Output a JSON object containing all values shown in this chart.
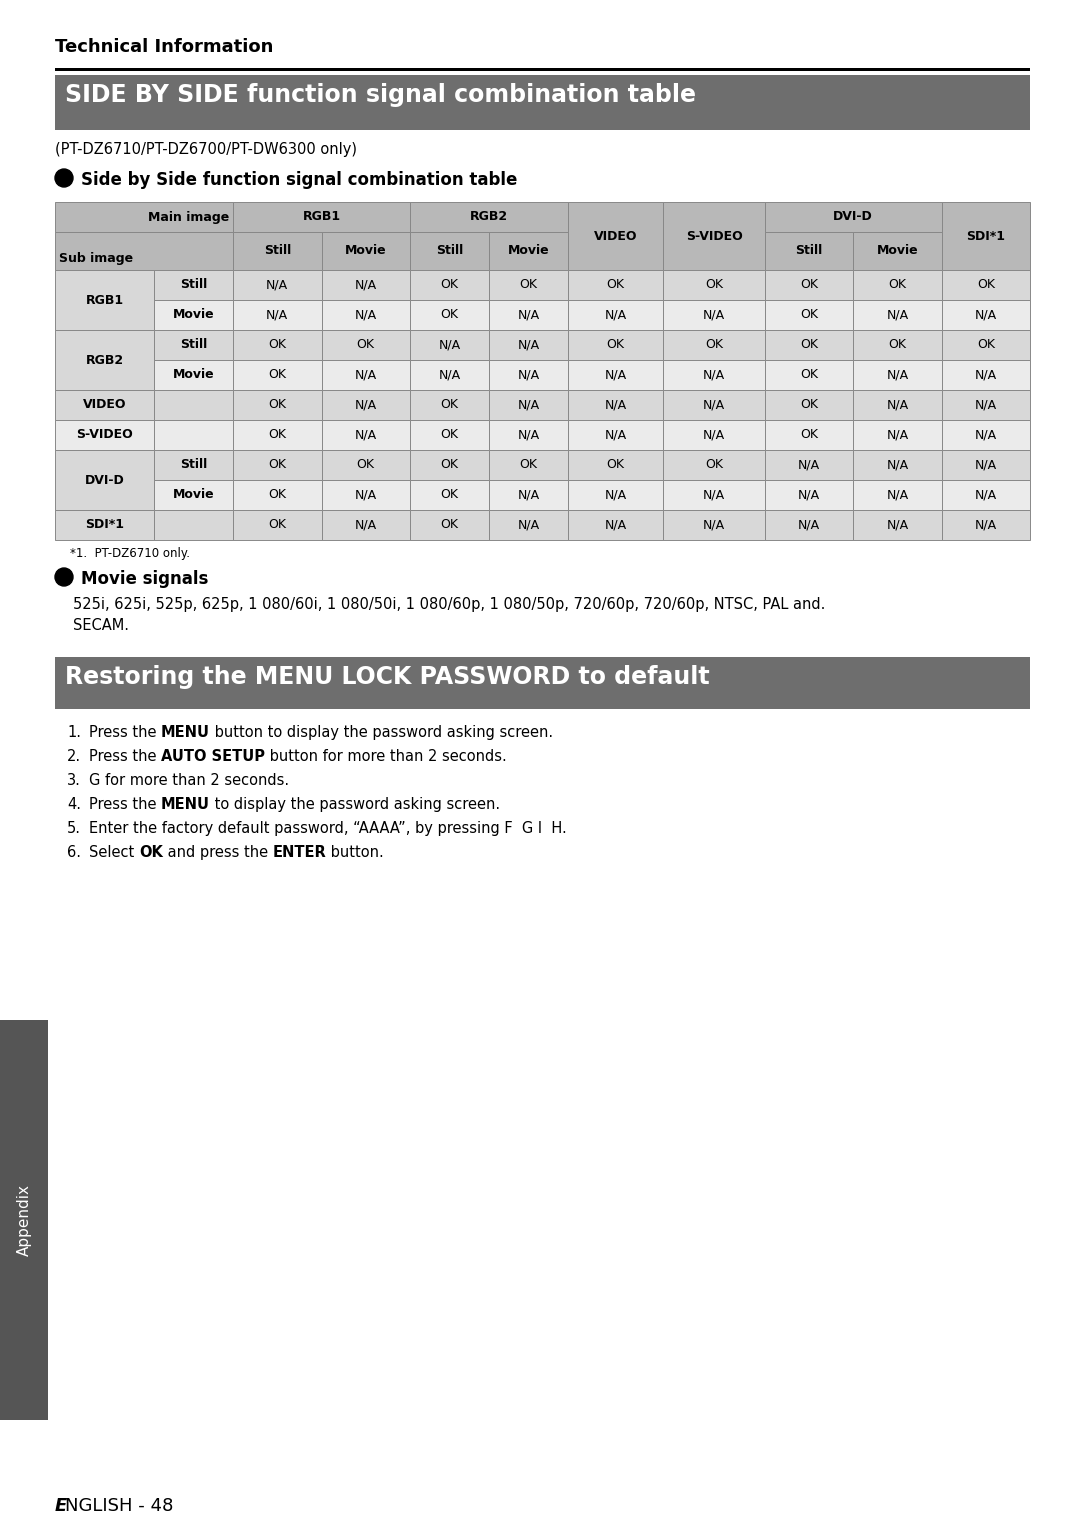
{
  "page_bg": "#ffffff",
  "section_header_bg": "#6e6e6e",
  "section_header_text_color": "#ffffff",
  "section_header1": "SIDE BY SIDE function signal combination table",
  "section_header2": "Restoring the MENU LOCK PASSWORD to default",
  "subtitle": "(PT-DZ6710/PT-DZ6700/PT-DW6300 only)",
  "tech_info_title": "Technical Information",
  "bullet_title1": "Side by Side function signal combination table",
  "bullet_title2": "Movie signals",
  "movie_signals_text": "525i, 625i, 525p, 625p, 1 080/60i, 1 080/50i, 1 080/60p, 1 080/50p, 720/60p, 720/60p, NTSC, PAL and.\nSECAM.",
  "footnote": "*1.  PT-DZ6710 only.",
  "table_header_bg": "#b8b8b8",
  "table_row_bg_a": "#d8d8d8",
  "table_row_bg_b": "#ebebeb",
  "table_border_color": "#888888",
  "table_data": [
    [
      "RGB1",
      "Still",
      "N/A",
      "N/A",
      "OK",
      "OK",
      "OK",
      "OK",
      "OK",
      "OK",
      "OK"
    ],
    [
      "RGB1",
      "Movie",
      "N/A",
      "N/A",
      "OK",
      "N/A",
      "N/A",
      "N/A",
      "OK",
      "N/A",
      "N/A"
    ],
    [
      "RGB2",
      "Still",
      "OK",
      "OK",
      "N/A",
      "N/A",
      "OK",
      "OK",
      "OK",
      "OK",
      "OK"
    ],
    [
      "RGB2",
      "Movie",
      "OK",
      "N/A",
      "N/A",
      "N/A",
      "N/A",
      "N/A",
      "OK",
      "N/A",
      "N/A"
    ],
    [
      "VIDEO",
      "",
      "OK",
      "N/A",
      "OK",
      "N/A",
      "N/A",
      "N/A",
      "OK",
      "N/A",
      "N/A"
    ],
    [
      "S-VIDEO",
      "",
      "OK",
      "N/A",
      "OK",
      "N/A",
      "N/A",
      "N/A",
      "OK",
      "N/A",
      "N/A"
    ],
    [
      "DVI-D",
      "Still",
      "OK",
      "OK",
      "OK",
      "OK",
      "OK",
      "OK",
      "N/A",
      "N/A",
      "N/A"
    ],
    [
      "DVI-D",
      "Movie",
      "OK",
      "N/A",
      "OK",
      "N/A",
      "N/A",
      "N/A",
      "N/A",
      "N/A",
      "N/A"
    ],
    [
      "SDI*1",
      "",
      "OK",
      "N/A",
      "OK",
      "N/A",
      "N/A",
      "N/A",
      "N/A",
      "N/A",
      "N/A"
    ]
  ],
  "appendix_tab_bg": "#555555",
  "appendix_text": "Appendix",
  "footer_text_italic": "E",
  "footer_text_normal": "NGLISH - 48"
}
